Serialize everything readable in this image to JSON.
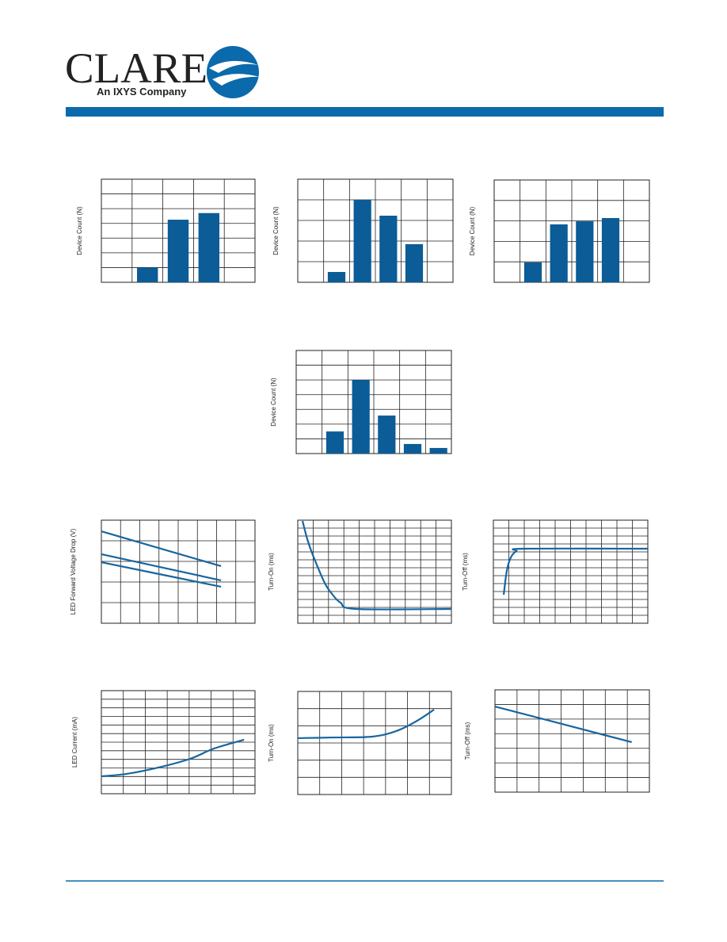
{
  "header": {
    "logo": "CLARE",
    "tagline": "An IXYS Company"
  },
  "chart_data": [
    {
      "type": "bar",
      "y_label": "Device Count (N)",
      "categories": [
        null,
        null,
        null,
        null,
        null
      ],
      "values": [
        null,
        1,
        4.25,
        4.7,
        null
      ],
      "color": "#0b5c97",
      "ylim": [
        0,
        7
      ],
      "grid": {
        "rows": 7,
        "cols": 5
      }
    },
    {
      "type": "bar",
      "y_label": "Device Count (N)",
      "categories": [
        null,
        null,
        null,
        null,
        null,
        null
      ],
      "values": [
        null,
        0.5,
        4.0,
        3.23,
        1.85,
        null
      ],
      "color": "#0b5c97",
      "ylim": [
        0,
        5
      ],
      "grid": {
        "rows": 5,
        "cols": 6
      }
    },
    {
      "type": "bar",
      "y_label": "Device Count (N)",
      "categories": [
        null,
        null,
        null,
        null,
        null,
        null
      ],
      "values": [
        null,
        0.97,
        2.83,
        2.98,
        3.14,
        null
      ],
      "color": "#0b5c97",
      "ylim": [
        0,
        5
      ],
      "grid": {
        "rows": 5,
        "cols": 6
      }
    },
    {
      "type": "bar",
      "y_label": "Device Count (N)",
      "categories": [
        null,
        null,
        null,
        null,
        null,
        null
      ],
      "values": [
        null,
        1.5,
        5.0,
        2.58,
        0.65,
        0.38
      ],
      "color": "#0b5c97",
      "ylim": [
        0,
        7
      ],
      "grid": {
        "rows": 7,
        "cols": 6
      }
    },
    {
      "type": "line",
      "y_label": "LED Forward Voltage Drop (V)",
      "x": [
        0,
        6.23
      ],
      "xlim": [
        0,
        8
      ],
      "ylim": [
        0,
        5
      ],
      "grid": {
        "rows": 5,
        "cols": 8
      },
      "series": [
        {
          "color": "#1766a0",
          "values": [
            4.46,
            2.77
          ]
        },
        {
          "color": "#1766a0",
          "values": [
            3.35,
            2.08
          ]
        },
        {
          "color": "#1766a0",
          "values": [
            2.96,
            1.77
          ]
        }
      ]
    },
    {
      "type": "line",
      "y_label": "Turn-On (ms)",
      "x": [
        0.31,
        0.62,
        0.98,
        1.75,
        2.27,
        2.78,
        3.81,
        10
      ],
      "xlim": [
        0,
        10
      ],
      "ylim": [
        0,
        13
      ],
      "grid": {
        "rows": 13,
        "cols": 10
      },
      "series": [
        {
          "color": "#1766a0",
          "values": [
            12.9,
            10.6,
            8.6,
            5.1,
            3.6,
            2.6,
            1.8,
            1.8
          ]
        }
      ]
    },
    {
      "type": "line",
      "y_label": "Turn-Off (ms)",
      "x": [
        0.67,
        0.87,
        1.13,
        1.49,
        2.0,
        10
      ],
      "xlim": [
        0,
        10
      ],
      "ylim": [
        0,
        13
      ],
      "grid": {
        "rows": 13,
        "cols": 10
      },
      "series": [
        {
          "color": "#1766a0",
          "values": [
            3.6,
            6.6,
            8.3,
            9.1,
            9.4,
            9.4
          ]
        }
      ]
    },
    {
      "type": "line",
      "y_label": "LED Current (mA)",
      "x": [
        0,
        1.16,
        2.6,
        4.04,
        5.13,
        6.5
      ],
      "xlim": [
        0,
        7
      ],
      "ylim": [
        0,
        12
      ],
      "grid": {
        "rows": 12,
        "cols": 7
      },
      "series": [
        {
          "color": "#1766a0",
          "values": [
            2.03,
            2.31,
            3.05,
            4.06,
            5.26,
            6.28
          ]
        }
      ]
    },
    {
      "type": "line",
      "y_label": "Turn-On (ms)",
      "x": [
        0,
        1.59,
        3.39,
        4.48,
        5.38,
        6.21
      ],
      "xlim": [
        0,
        7
      ],
      "ylim": [
        0,
        6
      ],
      "grid": {
        "rows": 6,
        "cols": 7
      },
      "series": [
        {
          "color": "#1766a0",
          "values": [
            3.28,
            3.32,
            3.37,
            3.69,
            4.25,
            4.94
          ]
        }
      ]
    },
    {
      "type": "line",
      "y_label": "Turn-Off (ms)",
      "x": [
        0,
        6.2
      ],
      "xlim": [
        0,
        7
      ],
      "ylim": [
        0,
        7
      ],
      "grid": {
        "rows": 7,
        "cols": 7
      },
      "series": [
        {
          "color": "#1766a0",
          "values": [
            5.86,
            3.42
          ]
        }
      ]
    }
  ]
}
